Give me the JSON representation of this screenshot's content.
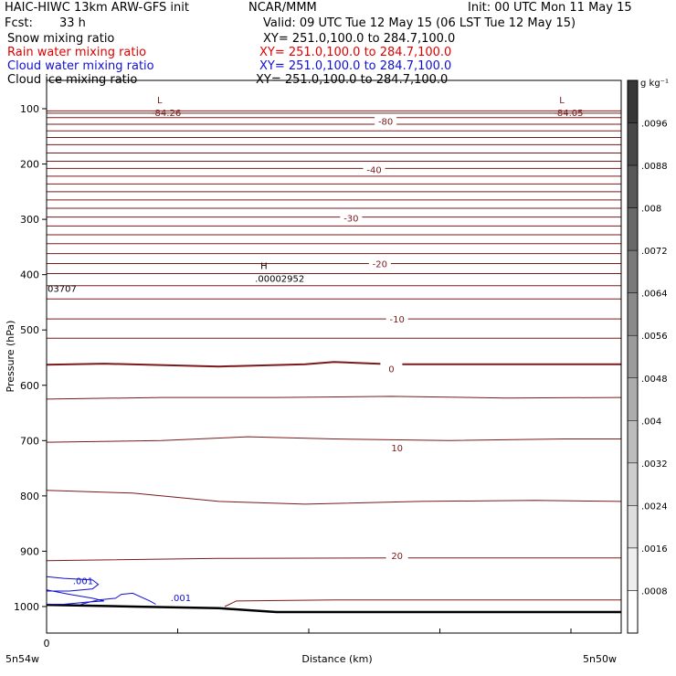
{
  "header": {
    "model": "HAIC-HIWC 13km ARW-GFS init",
    "org": "NCAR/MMM",
    "init": "Init: 00 UTC Mon 11 May 15",
    "fcst_label": "Fcst:",
    "fcst_value": "33 h",
    "valid": "Valid: 09 UTC Tue 12 May 15 (06 LST Tue 12 May 15)"
  },
  "fields": [
    {
      "name": "Snow mixing ratio",
      "xy": "XY= 251.0,100.0 to 284.7,100.0",
      "color": "#000000"
    },
    {
      "name": "Rain water mixing ratio",
      "xy": "XY= 251.0,100.0 to 284.7,100.0",
      "color": "#ff0000"
    },
    {
      "name": "Cloud water mixing ratio",
      "xy": "XY= 251.0,100.0 to 284.7,100.0",
      "color": "#0000ff"
    },
    {
      "name": "Cloud ice mixing ratio",
      "xy": "XY= 251.0,100.0 to 284.7,100.0",
      "color": "#000000"
    }
  ],
  "chart_data": {
    "type": "line",
    "xlabel": "Distance (km)",
    "ylabel": "Pressure (hPa)",
    "x_tick_labels": {
      "left_zero": "0",
      "left": "5n54w",
      "right": "5n50w"
    },
    "ylim": [
      1050,
      50
    ],
    "yticks": [
      100,
      200,
      300,
      400,
      500,
      600,
      700,
      800,
      900,
      1000
    ],
    "grid": false,
    "colorbar": {
      "unit": "g kg⁻¹",
      "labels": [
        ".0096",
        ".0088",
        ".008",
        ".0072",
        ".0064",
        ".0056",
        ".0048",
        ".004",
        ".0032",
        ".0024",
        ".0016",
        ".0008"
      ]
    },
    "temperature_contour_labels": [
      {
        "text": "-80",
        "x": 0.59,
        "p": 122
      },
      {
        "text": "-40",
        "x": 0.57,
        "p": 210
      },
      {
        "text": "-30",
        "x": 0.53,
        "p": 297
      },
      {
        "text": "-20",
        "x": 0.58,
        "p": 380
      },
      {
        "text": "-10",
        "x": 0.61,
        "p": 480
      },
      {
        "text": "0",
        "x": 0.6,
        "p": 570
      },
      {
        "text": "10",
        "x": 0.61,
        "p": 713
      },
      {
        "text": "20",
        "x": 0.61,
        "p": 908
      }
    ],
    "extrema": [
      {
        "symbol": "L",
        "value": "-84.26",
        "x": 0.24,
        "p": 100
      },
      {
        "symbol": "L",
        "value": "-84.05",
        "x": 0.94,
        "p": 100
      },
      {
        "symbol": "H",
        "value": ".00002952",
        "x": 0.42,
        "p": 400
      },
      {
        "symbol": "",
        "value": "03707",
        "x": 0.0,
        "p": 418
      }
    ],
    "cloud_water_labels": [
      {
        "text": ".001",
        "x": 0.03,
        "p": 960
      },
      {
        "text": ".001",
        "x": 0.2,
        "p": 990
      }
    ]
  }
}
